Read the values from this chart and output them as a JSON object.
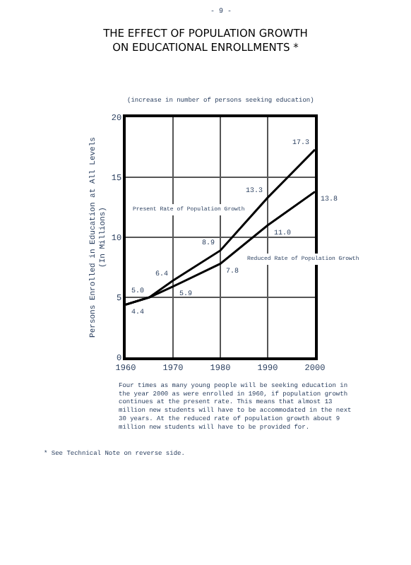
{
  "chart_data": {
    "type": "line",
    "title": "THE EFFECT OF POPULATION GROWTH\nON EDUCATIONAL ENROLLMENTS *",
    "subtitle": "(increase in number of persons seeking education)",
    "ylabel": "Persons Enrolled in Education at All Levels\n(In Millions)",
    "x": [
      1960,
      1965,
      1970,
      1980,
      1990,
      2000
    ],
    "series": [
      {
        "name": "Present Rate of Population Growth",
        "color": "#000000",
        "values": [
          4.4,
          5.0,
          6.4,
          8.9,
          13.3,
          17.3
        ],
        "value_labels": [
          "4.4",
          "5.0",
          "6.4",
          "8.9",
          "13.3",
          "17.3"
        ]
      },
      {
        "name": "Reduced Rate of Population Growth",
        "color": "#000000",
        "values": [
          4.4,
          5.0,
          5.9,
          7.8,
          11.0,
          13.8
        ],
        "value_labels": [
          null,
          null,
          "5.9",
          "7.8",
          "11.0",
          "13.8"
        ]
      }
    ],
    "xlim": [
      1960,
      2000
    ],
    "xticks": [
      1960,
      1970,
      1980,
      1990,
      2000
    ],
    "ylim": [
      0,
      20
    ],
    "yticks": [
      0,
      5,
      10,
      15,
      20
    ],
    "grid": true,
    "legend": false,
    "marker": "none",
    "line_style": "solid",
    "annotations": [
      "- 9 -",
      "Four times as many young people will be seeking education in the year 2000 as were enrolled in 1960, if population growth continues at the present rate. This means that almost 13 million new students will have to be accommodated in the next 30 years. At the reduced rate of population growth about 9 million new students will have to be provided for.",
      "* See Technical Note on reverse side."
    ]
  }
}
